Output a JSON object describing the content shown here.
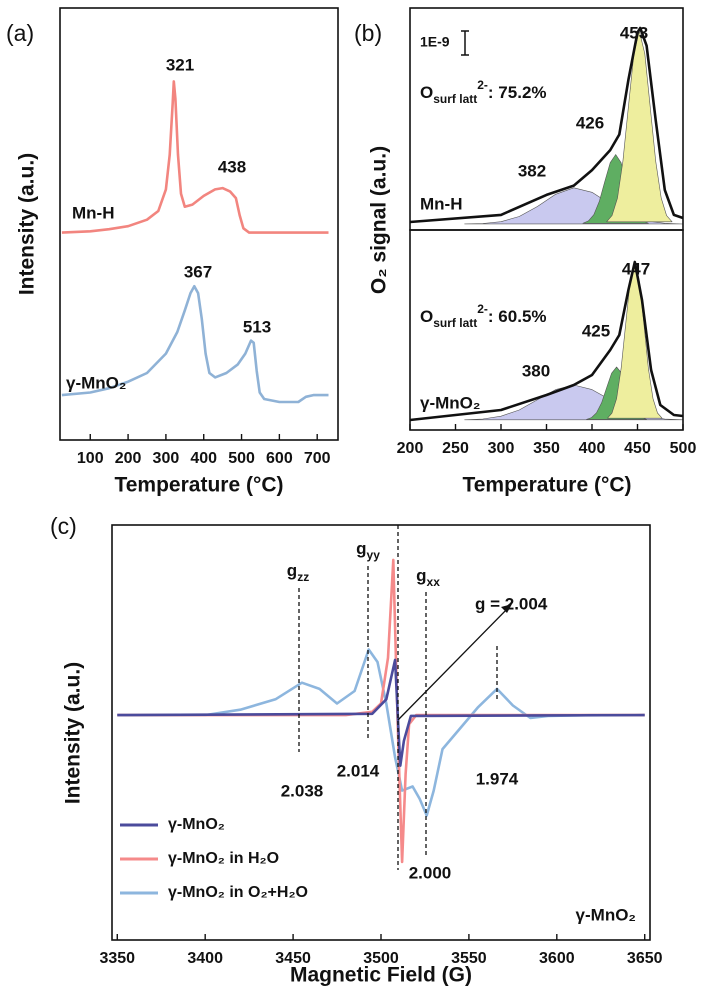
{
  "chart_data": [
    {
      "type": "line",
      "panel_label": "(a)",
      "xlabel": "Temperature (°C)",
      "ylabel": "Intensity (a.u.)",
      "xlim": [
        20,
        755
      ],
      "xticks": [
        100,
        200,
        300,
        400,
        500,
        600,
        700
      ],
      "ylim": [
        0,
        100
      ],
      "annotations": [
        "321",
        "438",
        "367",
        "513"
      ],
      "series": [
        {
          "name": "Mn-H",
          "color": "#f2857f",
          "x": [
            25,
            100,
            150,
            200,
            250,
            280,
            300,
            310,
            318,
            321,
            325,
            332,
            340,
            350,
            370,
            400,
            430,
            450,
            470,
            485,
            495,
            505,
            520,
            600,
            700,
            730
          ],
          "values": [
            48,
            48.3,
            48.8,
            49.5,
            51,
            53,
            58,
            66,
            78,
            83,
            79,
            66,
            57,
            54,
            54.5,
            56.5,
            58,
            58.3,
            57.5,
            56,
            52,
            49,
            48,
            48,
            48,
            48
          ]
        },
        {
          "name": "γ-MnO₂",
          "color": "#8fb2d6",
          "x": [
            25,
            100,
            150,
            200,
            250,
            300,
            330,
            350,
            365,
            375,
            385,
            395,
            405,
            415,
            430,
            460,
            490,
            510,
            525,
            532,
            540,
            548,
            560,
            600,
            650,
            670,
            690,
            730
          ],
          "values": [
            10.4,
            11,
            12,
            13.5,
            15.5,
            20,
            25,
            30,
            34,
            35.6,
            34,
            28,
            20,
            15.5,
            14.5,
            15.5,
            17.5,
            20,
            23,
            22.5,
            16,
            11,
            9.5,
            8.8,
            8.8,
            10,
            10.4,
            10.4
          ]
        }
      ]
    },
    {
      "type": "line",
      "panel_label": "(b)",
      "ylabel": "O₂ signal (a.u.)",
      "xlim": [
        200,
        500
      ],
      "ylim": [
        0,
        100
      ],
      "scale_label": "1E-9",
      "annotations": [
        "453",
        "426",
        "382"
      ],
      "sample": "Mn-H",
      "ratio_label": {
        "text": "O",
        "sub": "surf latt",
        "sup": "2-",
        "after": ": 75.2%"
      },
      "series": [
        {
          "color": "#c9c9ef",
          "fill": true,
          "x": [
            260,
            280,
            300,
            320,
            340,
            360,
            380,
            400,
            420,
            440,
            460,
            480,
            500
          ],
          "values": [
            2.74,
            2.93,
            3.76,
            6.1,
            10.6,
            16.1,
            19,
            17,
            11.7,
            6.8,
            4.1,
            3,
            2.7
          ]
        },
        {
          "color": "#5fae62",
          "fill": true,
          "x": [
            390,
            396,
            402,
            408,
            414,
            420,
            426,
            432,
            438,
            444,
            450,
            456,
            462
          ],
          "values": [
            3,
            4.1,
            6.9,
            12.9,
            21.7,
            30.3,
            34,
            30.3,
            21.7,
            12.9,
            6.9,
            4.1,
            3
          ]
        },
        {
          "color": "#eeee9e",
          "fill": true,
          "x": [
            416,
            422,
            428,
            434,
            440,
            446,
            452,
            458,
            464,
            470,
            476,
            482,
            488
          ],
          "values": [
            3.7,
            6.5,
            14.4,
            31,
            55.5,
            79.4,
            89.7,
            79.4,
            55.5,
            31,
            14.4,
            6.5,
            3.7
          ]
        },
        {
          "color": "#111111",
          "x": [
            200,
            300,
            350,
            380,
            400,
            420,
            430,
            440,
            450,
            453,
            460,
            470,
            480,
            490,
            500
          ],
          "values": [
            3.6,
            6.8,
            15.8,
            20,
            27,
            36,
            43,
            67.6,
            89,
            91,
            83,
            49.5,
            18,
            6.8,
            5.4
          ]
        }
      ]
    },
    {
      "type": "line",
      "xlabel": "Temperature (°C)",
      "xlim": [
        200,
        500
      ],
      "xticks": [
        200,
        250,
        300,
        350,
        400,
        450,
        500
      ],
      "ylim": [
        0,
        100
      ],
      "annotations": [
        "447",
        "425",
        "380"
      ],
      "sample": "γ-MnO₂",
      "ratio_label": {
        "text": "O",
        "sub": "surf latt",
        "sup": "2-",
        "after": ": 60.5%"
      },
      "series": [
        {
          "color": "#c9c9ef",
          "fill": true,
          "x": [
            260,
            280,
            300,
            320,
            340,
            360,
            380,
            400,
            420,
            440,
            460,
            480,
            500
          ],
          "values": [
            5.1,
            5.5,
            6.9,
            10,
            15.1,
            20.2,
            22.5,
            20.2,
            15.1,
            10,
            6.9,
            5.5,
            5.1
          ]
        },
        {
          "color": "#5fae62",
          "fill": true,
          "x": [
            394,
            399.5,
            405,
            410.5,
            416,
            421.5,
            427,
            432.5,
            438,
            443.5,
            449,
            454.5,
            460
          ],
          "values": [
            5.3,
            6.2,
            8.6,
            13.6,
            21.1,
            28.4,
            31.5,
            28.4,
            21.1,
            13.6,
            8.6,
            6.2,
            5.3
          ]
        },
        {
          "color": "#eeee9e",
          "fill": true,
          "x": [
            417,
            422,
            427,
            432,
            437,
            442,
            447,
            452,
            457,
            462,
            467,
            472,
            477
          ],
          "values": [
            5.9,
            8.5,
            15.7,
            30.7,
            53,
            74.7,
            84,
            74.7,
            53,
            30.7,
            15.7,
            8.5,
            5.9
          ]
        },
        {
          "color": "#111111",
          "x": [
            200,
            300,
            350,
            380,
            400,
            420,
            430,
            440,
            447,
            455,
            465,
            475,
            490,
            500
          ],
          "values": [
            5,
            10,
            17.5,
            22.5,
            27.5,
            40,
            47.5,
            70,
            84,
            65,
            30,
            12.5,
            7.5,
            7
          ]
        }
      ]
    },
    {
      "type": "line",
      "panel_label": "(c)",
      "xlabel": "Magnetic Field (G)",
      "ylabel": "Intensity (a.u.)",
      "xlim": [
        3347,
        3653
      ],
      "xticks": [
        3350,
        3400,
        3450,
        3500,
        3550,
        3600,
        3650
      ],
      "ylim": [
        0,
        100
      ],
      "legend": "lower left",
      "g_labels": [
        {
          "text": "g",
          "sub": "zz"
        },
        {
          "text": "g",
          "sub": "yy"
        },
        {
          "text": "g",
          "sub": "xx"
        }
      ],
      "annotations": [
        "g = 2.004",
        "2.038",
        "2.014",
        "2.000",
        "1.974"
      ],
      "sample": "γ-MnO₂",
      "series": [
        {
          "name": "γ-MnO₂ in O₂+H₂O",
          "color": "#8db6de",
          "x": [
            3350,
            3400,
            3420,
            3440,
            3455,
            3465,
            3475,
            3485,
            3493,
            3498,
            3503,
            3508,
            3512,
            3518,
            3522,
            3526,
            3530,
            3535,
            3545,
            3555,
            3566,
            3575,
            3585,
            3595,
            3620,
            3650
          ],
          "values": [
            54.2,
            54.2,
            55.5,
            58,
            62,
            60.5,
            57,
            60,
            70,
            67,
            57,
            44,
            36,
            37,
            34,
            30,
            36,
            46,
            51,
            56,
            60.5,
            56.5,
            53.5,
            54,
            54.2,
            54.2
          ]
        },
        {
          "name": "γ-MnO₂ in H₂O",
          "color": "#f58a8a",
          "x": [
            3350,
            3480,
            3495,
            3500,
            3504,
            3507,
            3509,
            3510,
            3512,
            3514,
            3516,
            3520,
            3650
          ],
          "values": [
            54.2,
            54.2,
            55,
            57,
            68,
            91.6,
            60,
            45,
            18.8,
            40,
            52,
            54.2,
            54.2
          ]
        },
        {
          "name": "γ-MnO₂",
          "color": "#4b4b9c",
          "x": [
            3350,
            3495,
            3503,
            3508,
            3510,
            3511,
            3513,
            3517,
            3650
          ],
          "values": [
            54.2,
            54.5,
            58,
            67.5,
            50,
            42,
            48,
            54,
            54.2
          ]
        }
      ]
    }
  ]
}
